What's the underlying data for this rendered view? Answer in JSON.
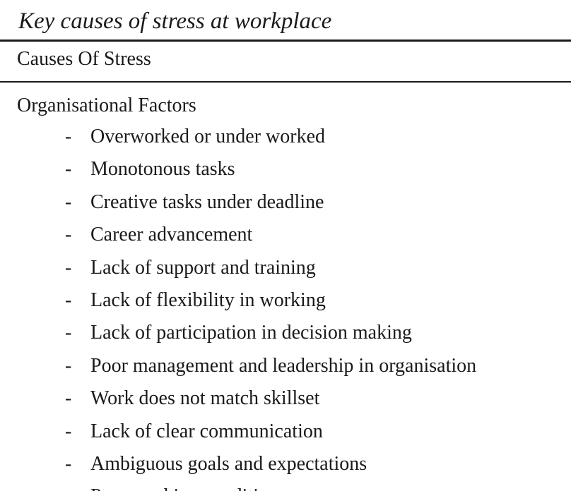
{
  "caption": "Key causes of stress at workplace",
  "table": {
    "header": "Causes Of Stress",
    "section_title": "Organisational Factors",
    "bullet": "-",
    "items": [
      "Overworked or under worked",
      "Monotonous tasks",
      "Creative tasks under deadline",
      "Career advancement",
      "Lack of support and training",
      "Lack of flexibility in working",
      "Lack of participation in decision making",
      "Poor management and leadership in organisation",
      "Work does not match skillset",
      "Lack of clear communication",
      "Ambiguous goals and expectations",
      "Poor working conditions"
    ]
  }
}
